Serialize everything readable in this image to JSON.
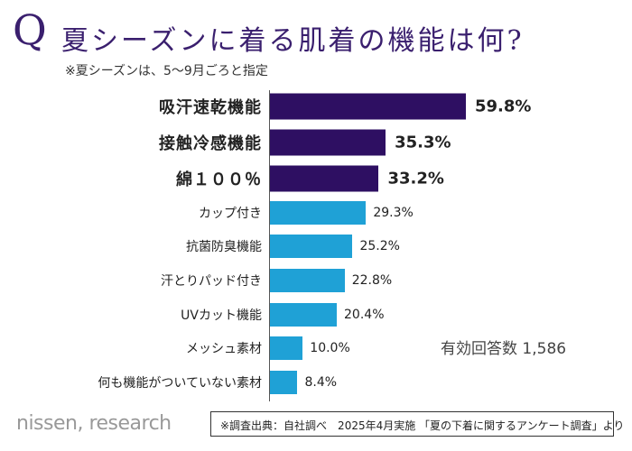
{
  "header": {
    "q_mark": "Q",
    "title": "夏シーズンに着る肌着の機能は何?",
    "subtitle": "※夏シーズンは、5〜9月ごろと指定"
  },
  "chart_data": {
    "type": "bar",
    "orientation": "horizontal",
    "categories": [
      "吸汗速乾機能",
      "接触冷感機能",
      "綿１００％",
      "カップ付き",
      "抗菌防臭機能",
      "汗とりパッド付き",
      "UVカット機能",
      "メッシュ素材",
      "何も機能がついていない素材"
    ],
    "values": [
      59.8,
      35.3,
      33.2,
      29.3,
      25.2,
      22.8,
      20.4,
      10.0,
      8.4
    ],
    "value_labels": [
      "59.8%",
      "35.3%",
      "33.2%",
      "29.3%",
      "25.2%",
      "22.8%",
      "20.4%",
      "10.0%",
      "8.4%"
    ],
    "highlighted": [
      true,
      true,
      true,
      false,
      false,
      false,
      false,
      false,
      false
    ],
    "colors": {
      "highlight": "#2e0f62",
      "normal": "#1fa1d6"
    },
    "xlim": [
      0,
      100
    ],
    "grid": false,
    "annotation": "有効回答数 1,586"
  },
  "footer": {
    "logo": "nissen, research",
    "source": "※調査出典：自社調べ　2025年4月実施 「夏の下着に関するアンケート調査」より"
  }
}
